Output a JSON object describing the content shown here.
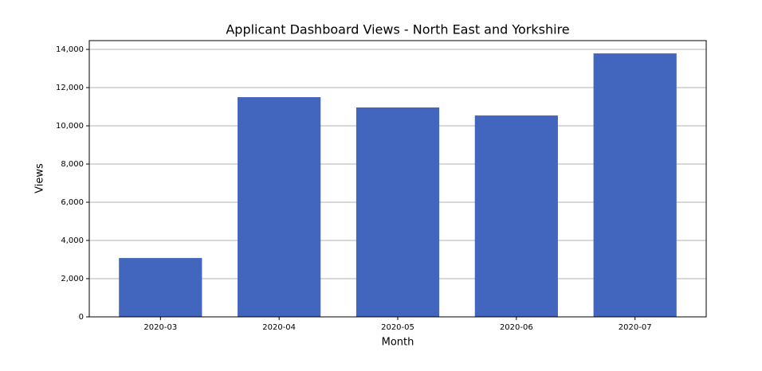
{
  "chart_data": {
    "type": "bar",
    "title": "Applicant Dashboard Views - North East and Yorkshire",
    "x_label": "Month",
    "y_label": "Views",
    "categories": [
      "2020-03",
      "2020-04",
      "2020-05",
      "2020-06",
      "2020-07"
    ],
    "values": [
      3080,
      11500,
      10960,
      10540,
      13790
    ],
    "color": "#4265bd",
    "ylim": [
      0,
      14460
    ],
    "yticks": [
      0,
      {
        "value": 2000,
        "label": "2,000"
      },
      {
        "value": 4000,
        "label": "4,000"
      },
      {
        "value": 6000,
        "label": "6,000"
      },
      {
        "value": 8000,
        "label": "8,000"
      },
      {
        "value": 10000,
        "label": "10,000"
      },
      {
        "value": 12000,
        "label": "12,000"
      },
      {
        "value": 14000,
        "label": "14,000"
      }
    ],
    "grid": true
  }
}
